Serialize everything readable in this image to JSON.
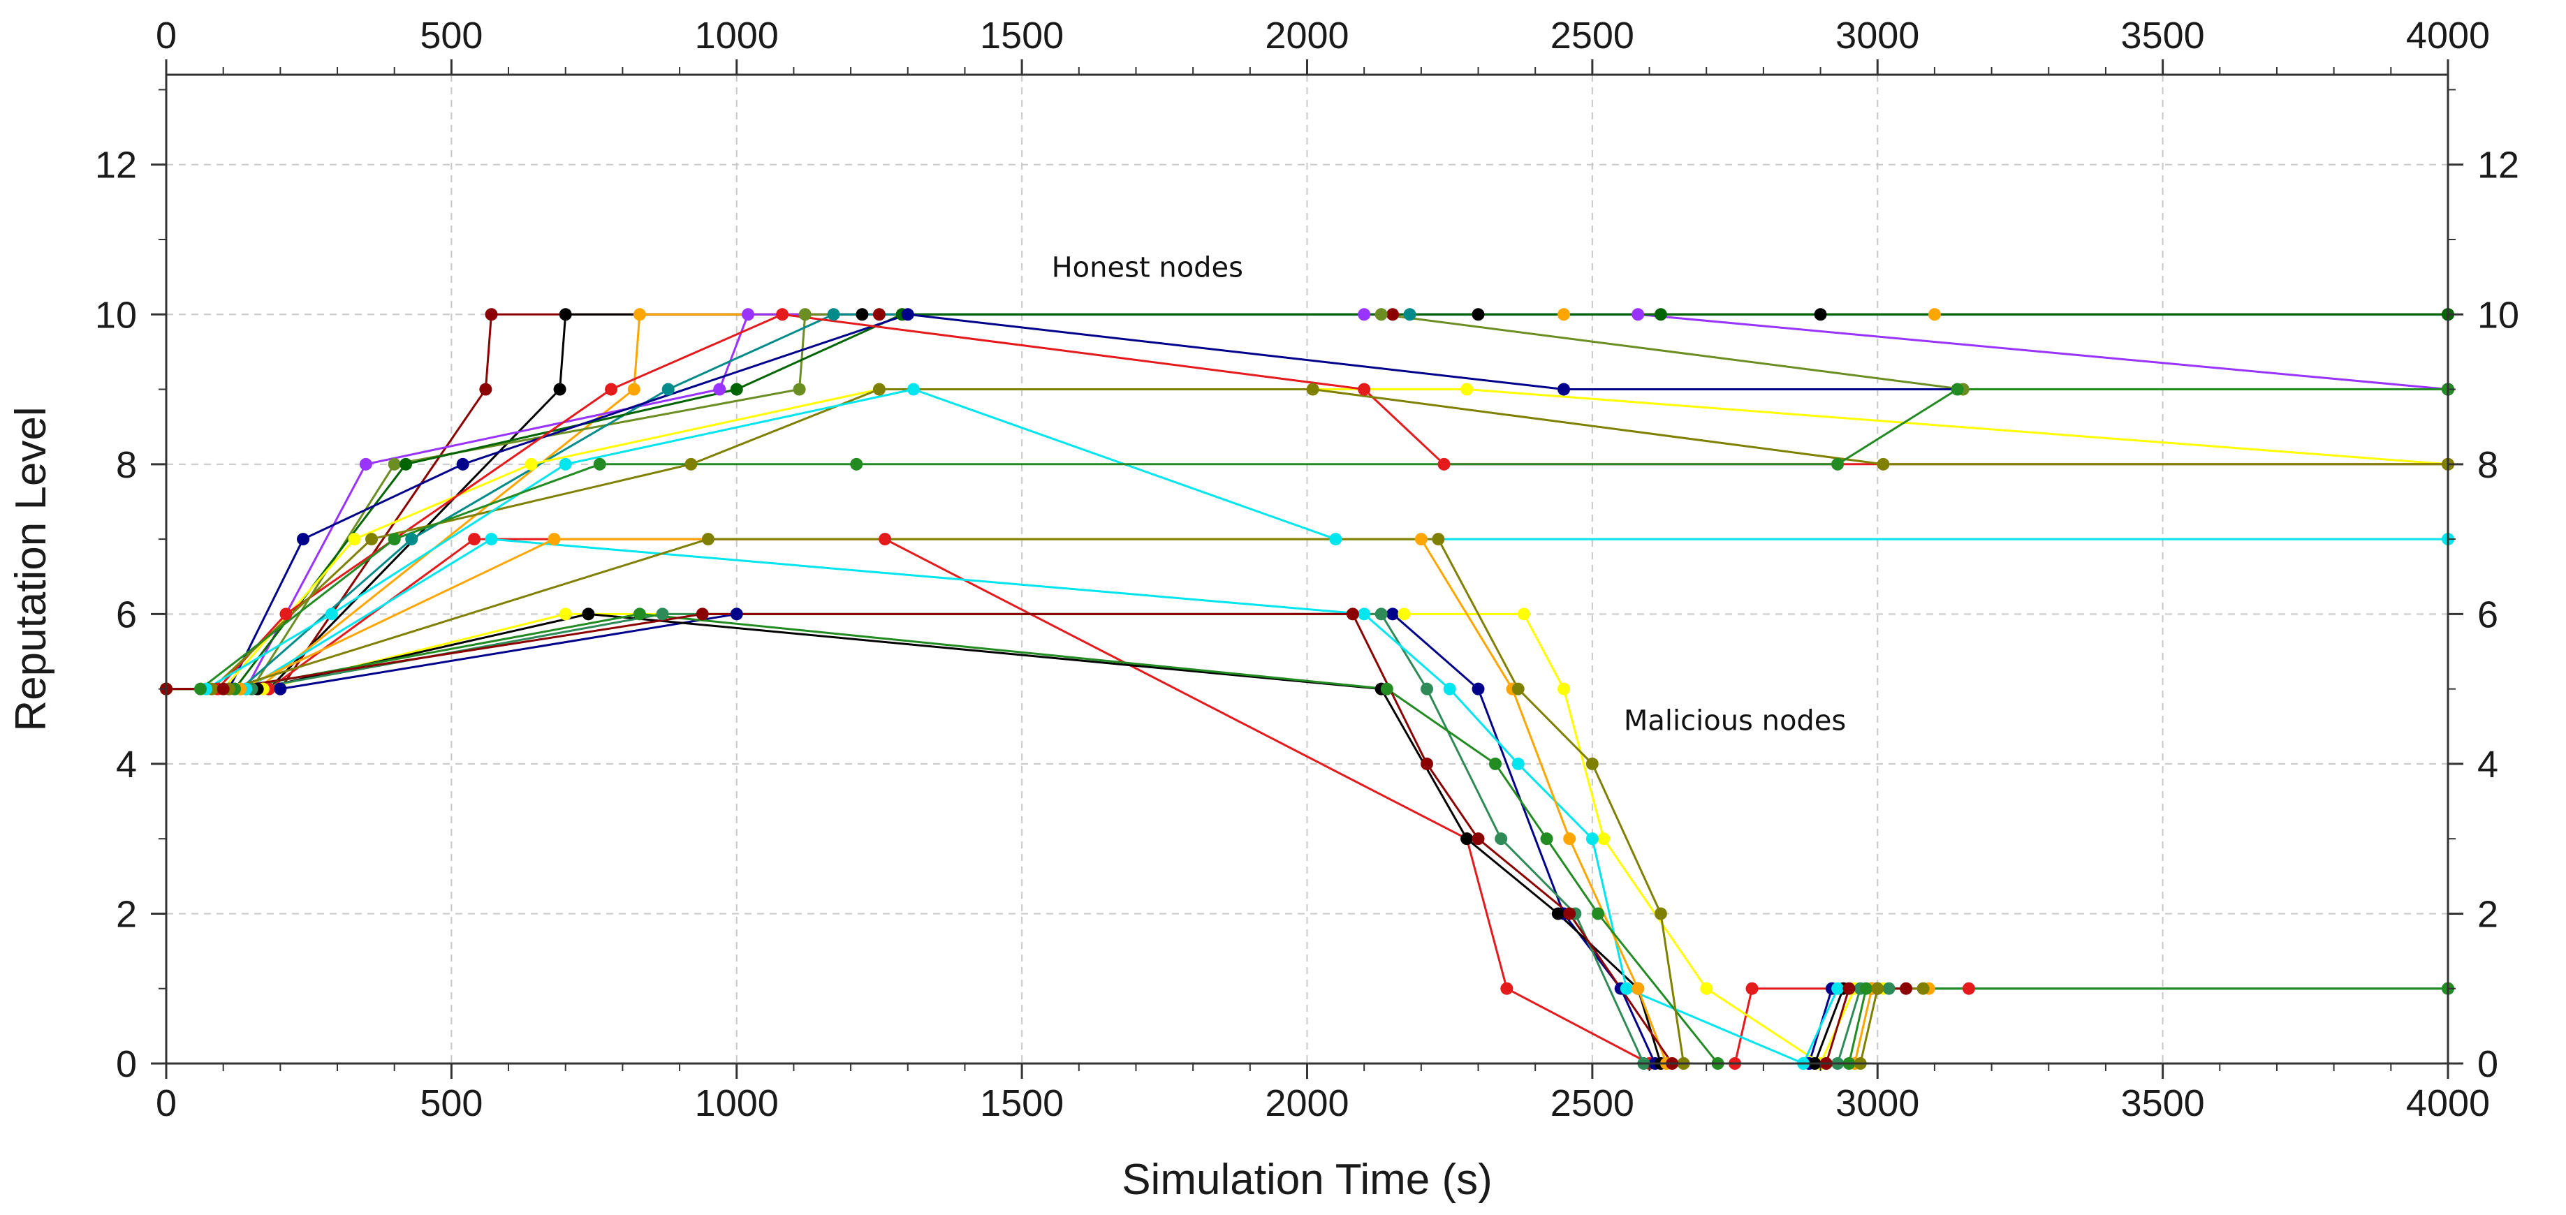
{
  "chart_data": {
    "type": "line",
    "title": "",
    "xlabel": "Simulation Time (s)",
    "ylabel": "Reputation Level",
    "xlim": [
      0,
      4000
    ],
    "ylim": [
      0,
      13.2
    ],
    "x_ticks": [
      0,
      500,
      1000,
      1500,
      2000,
      2500,
      3000,
      3500,
      4000
    ],
    "y_ticks": [
      0,
      2,
      4,
      6,
      8,
      10,
      12
    ],
    "grid": true,
    "annotations": [
      {
        "text": "Honest nodes",
        "x": 1720,
        "y": 10.5
      },
      {
        "text": "Malicious nodes",
        "x": 2750,
        "y": 4.45
      }
    ],
    "series": [
      {
        "color": "#8b0000",
        "points": [
          [
            0,
            5
          ],
          [
            200,
            5
          ],
          [
            560,
            9
          ],
          [
            570,
            10
          ],
          [
            1250,
            10
          ],
          [
            2150,
            10
          ],
          [
            4000,
            10
          ]
        ]
      },
      {
        "color": "#000000",
        "points": [
          [
            0,
            5
          ],
          [
            180,
            5
          ],
          [
            690,
            9
          ],
          [
            700,
            10
          ],
          [
            1220,
            10
          ],
          [
            2300,
            10
          ],
          [
            2900,
            10
          ],
          [
            4000,
            10
          ]
        ]
      },
      {
        "color": "#ffa500",
        "points": [
          [
            0,
            5
          ],
          [
            160,
            5
          ],
          [
            820,
            9
          ],
          [
            830,
            10
          ],
          [
            1290,
            10
          ],
          [
            2450,
            10
          ],
          [
            3100,
            10
          ],
          [
            4000,
            10
          ]
        ]
      },
      {
        "color": "#9933ff",
        "points": [
          [
            0,
            5
          ],
          [
            140,
            5
          ],
          [
            350,
            8
          ],
          [
            970,
            9
          ],
          [
            1020,
            10
          ],
          [
            2100,
            10
          ],
          [
            2580,
            10
          ],
          [
            4000,
            9
          ]
        ]
      },
      {
        "color": "#6b8e23",
        "points": [
          [
            0,
            5
          ],
          [
            150,
            5
          ],
          [
            400,
            8
          ],
          [
            1110,
            9
          ],
          [
            1120,
            10
          ],
          [
            2130,
            10
          ],
          [
            3150,
            9
          ],
          [
            4000,
            9
          ]
        ]
      },
      {
        "color": "#008b8b",
        "points": [
          [
            0,
            5
          ],
          [
            130,
            5
          ],
          [
            430,
            7
          ],
          [
            880,
            9
          ],
          [
            1170,
            10
          ],
          [
            2180,
            10
          ],
          [
            4000,
            10
          ]
        ]
      },
      {
        "color": "#006400",
        "points": [
          [
            0,
            5
          ],
          [
            120,
            5
          ],
          [
            420,
            8
          ],
          [
            1000,
            9
          ],
          [
            1290,
            10
          ],
          [
            2620,
            10
          ],
          [
            4000,
            10
          ]
        ]
      },
      {
        "color": "#00008b",
        "points": [
          [
            0,
            5
          ],
          [
            110,
            5
          ],
          [
            240,
            7
          ],
          [
            520,
            8
          ],
          [
            1300,
            10
          ],
          [
            2450,
            9
          ],
          [
            4000,
            9
          ]
        ]
      },
      {
        "color": "#ffff00",
        "points": [
          [
            0,
            5
          ],
          [
            100,
            5
          ],
          [
            330,
            7
          ],
          [
            640,
            8
          ],
          [
            1250,
            9
          ],
          [
            2280,
            9
          ],
          [
            4000,
            8
          ]
        ]
      },
      {
        "color": "#e41a1c",
        "points": [
          [
            0,
            5
          ],
          [
            90,
            5
          ],
          [
            210,
            6
          ],
          [
            780,
            9
          ],
          [
            1080,
            10
          ],
          [
            2100,
            9
          ],
          [
            2240,
            8
          ],
          [
            4000,
            8
          ]
        ]
      },
      {
        "color": "#808000",
        "points": [
          [
            0,
            5
          ],
          [
            80,
            5
          ],
          [
            360,
            7
          ],
          [
            920,
            8
          ],
          [
            1250,
            9
          ],
          [
            2010,
            9
          ],
          [
            3010,
            8
          ],
          [
            4000,
            8
          ]
        ]
      },
      {
        "color": "#00e5ee",
        "points": [
          [
            0,
            5
          ],
          [
            70,
            5
          ],
          [
            290,
            6
          ],
          [
            700,
            8
          ],
          [
            1310,
            9
          ],
          [
            2050,
            7
          ],
          [
            4000,
            7
          ]
        ]
      },
      {
        "color": "#228b22",
        "points": [
          [
            0,
            5
          ],
          [
            60,
            5
          ],
          [
            400,
            7
          ],
          [
            760,
            8
          ],
          [
            1210,
            8
          ],
          [
            2930,
            8
          ],
          [
            3140,
            9
          ],
          [
            4000,
            9
          ]
        ]
      },
      {
        "color": "#e41a1c",
        "points": [
          [
            0,
            5
          ],
          [
            180,
            5
          ],
          [
            540,
            7
          ],
          [
            1260,
            7
          ],
          [
            2280,
            3
          ],
          [
            2350,
            1
          ],
          [
            2600,
            0
          ],
          [
            2750,
            0
          ],
          [
            2780,
            1
          ],
          [
            3160,
            1
          ],
          [
            4000,
            1
          ]
        ]
      },
      {
        "color": "#00008b",
        "points": [
          [
            0,
            5
          ],
          [
            200,
            5
          ],
          [
            1000,
            6
          ],
          [
            2150,
            6
          ],
          [
            2300,
            5
          ],
          [
            2450,
            2
          ],
          [
            2550,
            1
          ],
          [
            2610,
            0
          ],
          [
            2880,
            0
          ],
          [
            2920,
            1
          ],
          [
            3000,
            1
          ]
        ]
      },
      {
        "color": "#ffff00",
        "points": [
          [
            0,
            5
          ],
          [
            170,
            5
          ],
          [
            700,
            6
          ],
          [
            2170,
            6
          ],
          [
            2380,
            6
          ],
          [
            2450,
            5
          ],
          [
            2520,
            3
          ],
          [
            2700,
            1
          ],
          [
            2900,
            0
          ],
          [
            2960,
            1
          ],
          [
            3010,
            1
          ]
        ]
      },
      {
        "color": "#000000",
        "points": [
          [
            0,
            5
          ],
          [
            160,
            5
          ],
          [
            740,
            6
          ],
          [
            2130,
            5
          ],
          [
            2280,
            3
          ],
          [
            2440,
            2
          ],
          [
            2580,
            1
          ],
          [
            2620,
            0
          ],
          [
            2890,
            0
          ],
          [
            2940,
            1
          ],
          [
            2990,
            1
          ]
        ]
      },
      {
        "color": "#2e8b57",
        "points": [
          [
            0,
            5
          ],
          [
            150,
            5
          ],
          [
            870,
            6
          ],
          [
            2130,
            6
          ],
          [
            2210,
            5
          ],
          [
            2340,
            3
          ],
          [
            2470,
            2
          ],
          [
            2590,
            0
          ],
          [
            2930,
            0
          ],
          [
            2970,
            1
          ],
          [
            3020,
            1
          ]
        ]
      },
      {
        "color": "#00e5ee",
        "points": [
          [
            0,
            5
          ],
          [
            140,
            5
          ],
          [
            570,
            7
          ],
          [
            2100,
            6
          ],
          [
            2250,
            5
          ],
          [
            2370,
            4
          ],
          [
            2500,
            3
          ],
          [
            2560,
            1
          ],
          [
            2870,
            0
          ],
          [
            2930,
            1
          ],
          [
            4000,
            1
          ]
        ]
      },
      {
        "color": "#ffa500",
        "points": [
          [
            0,
            5
          ],
          [
            130,
            5
          ],
          [
            680,
            7
          ],
          [
            2200,
            7
          ],
          [
            2360,
            5
          ],
          [
            2460,
            3
          ],
          [
            2580,
            1
          ],
          [
            2630,
            0
          ],
          [
            2960,
            0
          ],
          [
            2990,
            1
          ],
          [
            3090,
            1
          ]
        ]
      },
      {
        "color": "#228b22",
        "points": [
          [
            0,
            5
          ],
          [
            120,
            5
          ],
          [
            830,
            6
          ],
          [
            2140,
            5
          ],
          [
            2330,
            4
          ],
          [
            2420,
            3
          ],
          [
            2510,
            2
          ],
          [
            2720,
            0
          ],
          [
            2950,
            0
          ],
          [
            2980,
            1
          ],
          [
            4000,
            1
          ]
        ]
      },
      {
        "color": "#808000",
        "points": [
          [
            0,
            5
          ],
          [
            110,
            5
          ],
          [
            950,
            7
          ],
          [
            2230,
            7
          ],
          [
            2370,
            5
          ],
          [
            2500,
            4
          ],
          [
            2620,
            2
          ],
          [
            2660,
            0
          ],
          [
            2970,
            0
          ],
          [
            3000,
            1
          ],
          [
            3080,
            1
          ]
        ]
      },
      {
        "color": "#8b0000",
        "points": [
          [
            0,
            5
          ],
          [
            100,
            5
          ],
          [
            940,
            6
          ],
          [
            2080,
            6
          ],
          [
            2210,
            4
          ],
          [
            2300,
            3
          ],
          [
            2460,
            2
          ],
          [
            2640,
            0
          ],
          [
            2910,
            0
          ],
          [
            2950,
            1
          ],
          [
            3050,
            1
          ]
        ]
      }
    ]
  }
}
